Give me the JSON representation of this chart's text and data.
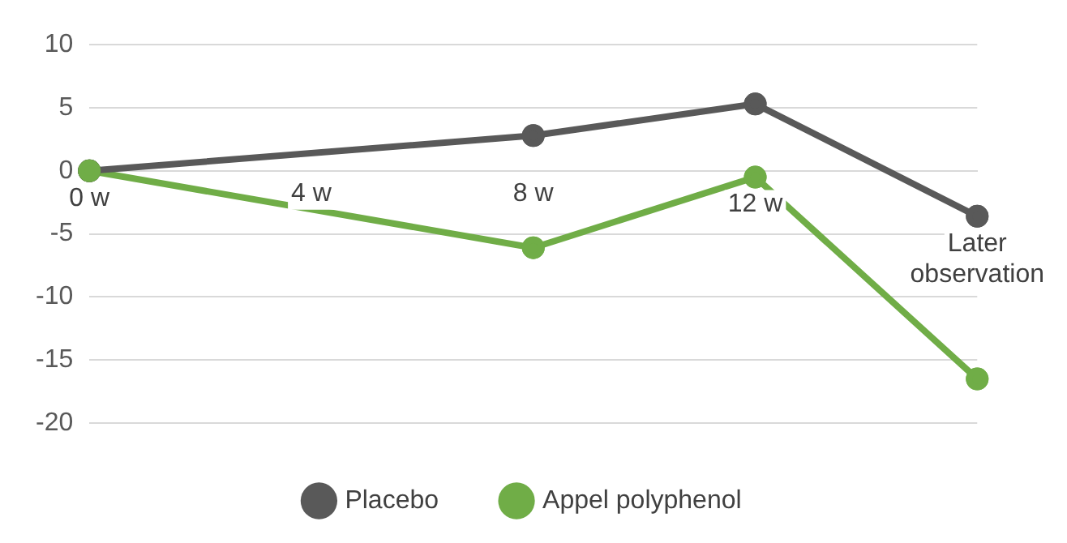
{
  "chart_data": {
    "type": "line",
    "categories": [
      "0 w",
      "4 w",
      "8 w",
      "12 w",
      "Later observation"
    ],
    "series": [
      {
        "name": "Placebo",
        "color": "#595959",
        "values": [
          0,
          null,
          2.8,
          5.3,
          -3.6
        ]
      },
      {
        "name": "Appel polyphenol",
        "color": "#70ad47",
        "values": [
          0,
          null,
          -6.1,
          -0.5,
          -16.5
        ]
      }
    ],
    "ylim": [
      -20,
      10
    ],
    "yticks": [
      -20,
      -15,
      -10,
      -5,
      0,
      5,
      10
    ],
    "grid": "y",
    "legend": "bottom",
    "marker": "circle",
    "line_style": "solid"
  }
}
